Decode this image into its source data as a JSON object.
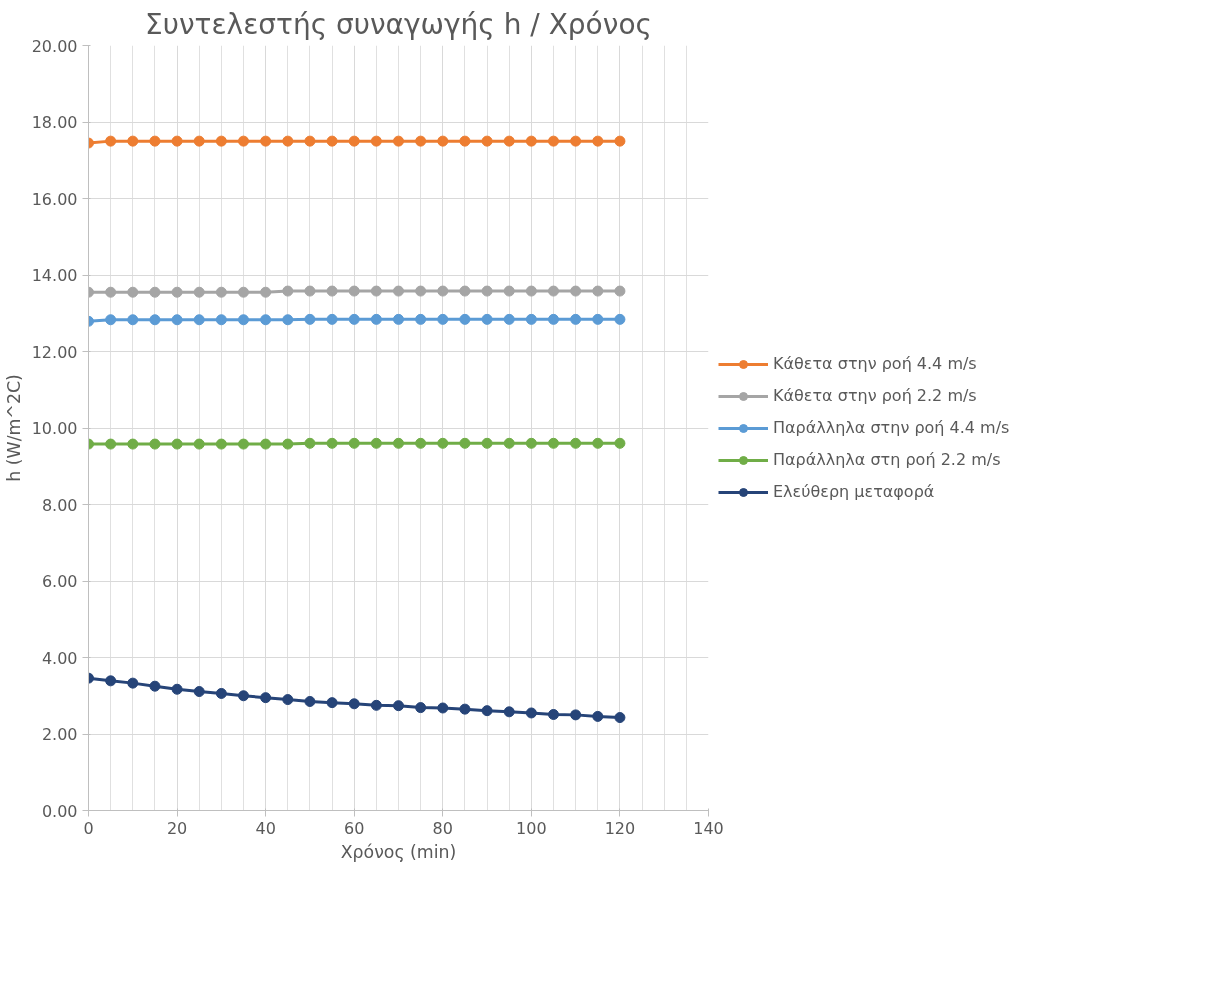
{
  "chart_data": {
    "type": "line",
    "title": "Συντελεστής συναγωγής h / Χρόνος",
    "xlabel": "Χρόνος (min)",
    "ylabel": "h (W/m^2C)",
    "x": [
      0,
      5,
      10,
      15,
      20,
      25,
      30,
      35,
      40,
      45,
      50,
      55,
      60,
      65,
      70,
      75,
      80,
      85,
      90,
      95,
      100,
      105,
      110,
      115,
      120
    ],
    "series": [
      {
        "name": "Κάθετα στην ροή 4.4 m/s",
        "color": "#ed7d31",
        "values": [
          17.45,
          17.5,
          17.5,
          17.5,
          17.5,
          17.5,
          17.5,
          17.5,
          17.5,
          17.5,
          17.5,
          17.5,
          17.5,
          17.5,
          17.5,
          17.5,
          17.5,
          17.5,
          17.5,
          17.5,
          17.5,
          17.5,
          17.5,
          17.5,
          17.5
        ]
      },
      {
        "name": "Κάθετα στην ροή 2.2 m/s",
        "color": "#a5a5a5",
        "values": [
          13.55,
          13.55,
          13.55,
          13.55,
          13.55,
          13.55,
          13.55,
          13.55,
          13.55,
          13.58,
          13.58,
          13.58,
          13.58,
          13.58,
          13.58,
          13.58,
          13.58,
          13.58,
          13.58,
          13.58,
          13.58,
          13.58,
          13.58,
          13.58,
          13.58
        ]
      },
      {
        "name": "Παράλληλα στην ροή 4.4 m/s",
        "color": "#5b9bd5",
        "values": [
          12.79,
          12.83,
          12.83,
          12.83,
          12.83,
          12.83,
          12.83,
          12.83,
          12.83,
          12.83,
          12.84,
          12.84,
          12.84,
          12.84,
          12.84,
          12.84,
          12.84,
          12.84,
          12.84,
          12.84,
          12.84,
          12.84,
          12.84,
          12.84,
          12.84
        ]
      },
      {
        "name": "Παράλληλα στη ροή 2.2 m/s",
        "color": "#70ad47",
        "values": [
          9.58,
          9.58,
          9.58,
          9.58,
          9.58,
          9.58,
          9.58,
          9.58,
          9.58,
          9.58,
          9.6,
          9.6,
          9.6,
          9.6,
          9.6,
          9.6,
          9.6,
          9.6,
          9.6,
          9.6,
          9.6,
          9.6,
          9.6,
          9.6,
          9.6
        ]
      },
      {
        "name": "Ελεύθερη μεταφορά",
        "color": "#264478",
        "values": [
          3.46,
          3.39,
          3.33,
          3.25,
          3.17,
          3.11,
          3.06,
          3.0,
          2.95,
          2.9,
          2.85,
          2.82,
          2.79,
          2.75,
          2.74,
          2.69,
          2.68,
          2.65,
          2.61,
          2.58,
          2.55,
          2.51,
          2.5,
          2.46,
          2.43
        ]
      }
    ],
    "xlim": [
      0,
      140
    ],
    "xticks": [
      0,
      20,
      40,
      60,
      80,
      100,
      120,
      140
    ],
    "ylim": [
      0,
      20
    ],
    "yticks": [
      {
        "value": 0,
        "label": "0.00"
      },
      {
        "value": 2,
        "label": "2.00"
      },
      {
        "value": 4,
        "label": "4.00"
      },
      {
        "value": 6,
        "label": "6.00"
      },
      {
        "value": 8,
        "label": "8.00"
      },
      {
        "value": 10,
        "label": "10.00"
      },
      {
        "value": 12,
        "label": "12.00"
      },
      {
        "value": 14,
        "label": "14.00"
      },
      {
        "value": 16,
        "label": "16.00"
      },
      {
        "value": 18,
        "label": "18.00"
      },
      {
        "value": 20,
        "label": "20.00"
      }
    ],
    "grid": true,
    "legend": "right",
    "marker": "circle",
    "line_style": "solid"
  }
}
